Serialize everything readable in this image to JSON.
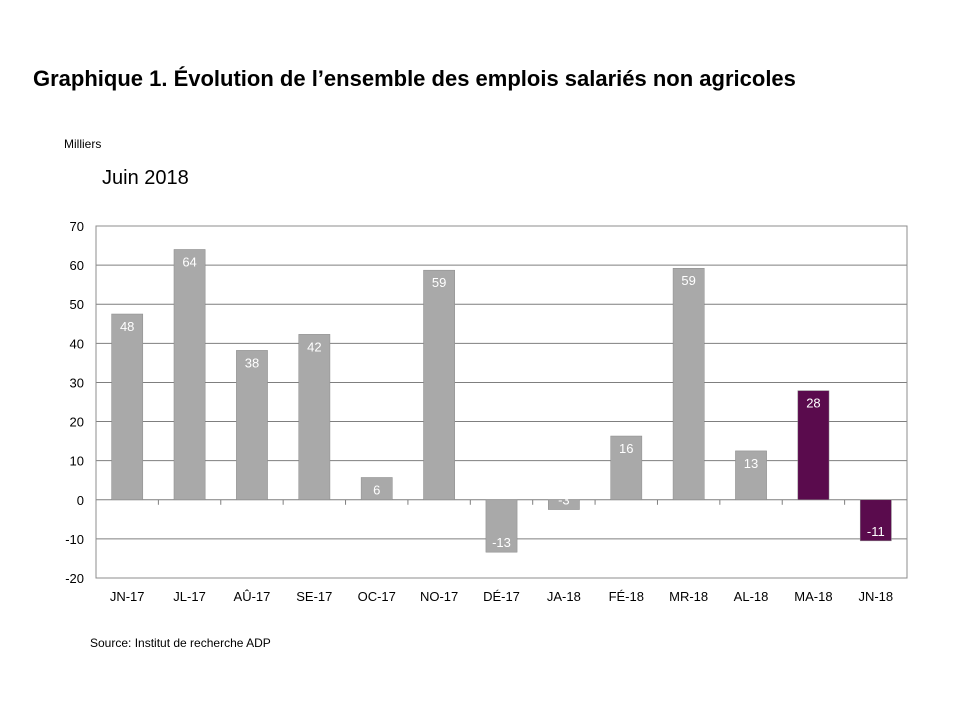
{
  "header": {
    "title": "Graphique 1. Évolution de l’ensemble des emplois salariés non agricoles",
    "units": "Milliers",
    "subtitle": "Juin 2018"
  },
  "footer": {
    "source": "Source: Institut de recherche ADP"
  },
  "chart_data": {
    "type": "bar",
    "title": "Graphique 1. Évolution de l’ensemble des emplois salariés non agricoles",
    "subtitle": "Juin 2018",
    "ylabel": "Milliers",
    "xlabel": "",
    "categories": [
      "JN-17",
      "JL-17",
      "AÛ-17",
      "SE-17",
      "OC-17",
      "NO-17",
      "DÉ-17",
      "JA-18",
      "FÉ-18",
      "MR-18",
      "AL-18",
      "MA-18",
      "JN-18"
    ],
    "values": [
      48,
      64,
      38,
      42,
      6,
      59,
      -13,
      -3,
      16,
      59,
      13,
      28,
      -11
    ],
    "bar_values": [
      47.5,
      64,
      38.2,
      42.3,
      5.7,
      58.7,
      -13.4,
      -2.5,
      16.3,
      59.2,
      12.5,
      27.9,
      -10.5
    ],
    "data_labels": [
      "48",
      "64",
      "38",
      "42",
      "6",
      "59",
      "-13",
      "-3",
      "16",
      "59",
      "13",
      "28",
      "-11"
    ],
    "y_ticks": [
      70,
      60,
      50,
      40,
      30,
      20,
      10,
      0,
      -10,
      -20
    ],
    "y_tick_labels": [
      "70",
      "60",
      "50",
      "40",
      "30",
      "20",
      "10",
      "0",
      "-10",
      "-20"
    ],
    "ylim": [
      -20,
      70
    ],
    "grid": true,
    "legend": "none",
    "colors": {
      "bar_default": "#a9a9a9",
      "bar_highlight": "#5a0b4d",
      "gridline": "#7f7f7f",
      "frame": "#8c8c8c"
    },
    "highlighted_categories": [
      "MA-18",
      "JN-18"
    ]
  }
}
